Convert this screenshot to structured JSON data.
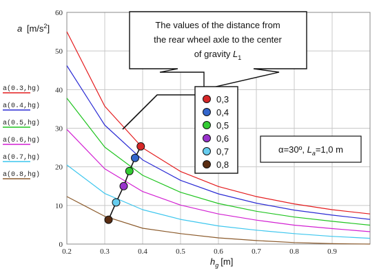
{
  "chart_data": {
    "type": "line",
    "title": "",
    "xlabel_main": "h",
    "xlabel_sub": "g",
    "xlabel_unit": "[m]",
    "ylabel_main": "a",
    "ylabel_unit": "[m/s",
    "ylabel_sup": "2",
    "ylabel_close": "]",
    "xlim": [
      0.2,
      1.0
    ],
    "ylim": [
      0,
      60
    ],
    "xticks": [
      "0.2",
      "0.3",
      "0.4",
      "0.5",
      "0.6",
      "0.7",
      "0.8",
      "0.9"
    ],
    "yticks": [
      "0",
      "10",
      "20",
      "30",
      "40",
      "50",
      "60"
    ],
    "grid": true,
    "legend_position": "left",
    "series": [
      {
        "name": "a(0.3,hg)",
        "color": "#e41a1c",
        "x": [
          0.2,
          0.3,
          0.4,
          0.5,
          0.6,
          0.7,
          0.8,
          0.9,
          1.0
        ],
        "values": [
          55.0,
          35.7,
          24.9,
          18.8,
          14.9,
          12.3,
          10.4,
          8.9,
          7.8
        ]
      },
      {
        "name": "a(0.4,hg)",
        "color": "#2a2ad4",
        "x": [
          0.2,
          0.3,
          0.4,
          0.5,
          0.6,
          0.7,
          0.8,
          0.9,
          1.0
        ],
        "values": [
          46.2,
          30.8,
          21.8,
          16.5,
          13.0,
          10.6,
          8.8,
          7.5,
          6.4
        ]
      },
      {
        "name": "a(0.5,hg)",
        "color": "#1fc41f",
        "x": [
          0.2,
          0.3,
          0.4,
          0.5,
          0.6,
          0.7,
          0.8,
          0.9,
          1.0
        ],
        "values": [
          37.8,
          25.1,
          17.8,
          13.4,
          10.5,
          8.5,
          7.0,
          5.9,
          4.9
        ]
      },
      {
        "name": "a(0.6,hg)",
        "color": "#d21fd2",
        "x": [
          0.2,
          0.3,
          0.4,
          0.5,
          0.6,
          0.7,
          0.8,
          0.9,
          1.0
        ],
        "values": [
          29.7,
          19.5,
          13.6,
          10.1,
          7.8,
          6.2,
          4.9,
          4.0,
          3.2
        ]
      },
      {
        "name": "a(0.7,hg)",
        "color": "#3cc6ee",
        "x": [
          0.2,
          0.3,
          0.4,
          0.5,
          0.6,
          0.7,
          0.8,
          0.9,
          1.0
        ],
        "values": [
          20.5,
          13.1,
          8.9,
          6.4,
          4.7,
          3.6,
          2.7,
          2.0,
          1.5
        ]
      },
      {
        "name": "a(0.8,hg)",
        "color": "#8b5a2b",
        "x": [
          0.2,
          0.3,
          0.4,
          0.5,
          0.6,
          0.7,
          0.8,
          0.9,
          1.0
        ],
        "values": [
          12.3,
          7.2,
          4.1,
          2.7,
          1.6,
          0.9,
          0.4,
          0.1,
          0.0
        ]
      }
    ],
    "markers": [
      {
        "label": "0,3",
        "color": "#d62728",
        "x": 0.395,
        "y": 25.3
      },
      {
        "label": "0,4",
        "color": "#3366cc",
        "x": 0.38,
        "y": 22.3
      },
      {
        "label": "0,5",
        "color": "#33cc33",
        "x": 0.365,
        "y": 18.9
      },
      {
        "label": "0,6",
        "color": "#9933cc",
        "x": 0.35,
        "y": 15.0
      },
      {
        "label": "0,7",
        "color": "#66ccee",
        "x": 0.33,
        "y": 10.8
      },
      {
        "label": "0,8",
        "color": "#5a2d12",
        "x": 0.31,
        "y": 6.3
      }
    ],
    "callout_lines": [
      "The values of the distance from",
      "the rear wheel axle to the center",
      "of gravity "
    ],
    "callout_symbol": "L",
    "callout_symbol_sub": "1",
    "param_alpha": "α=30º, ",
    "param_L": "L",
    "param_L_sub": "a",
    "param_L_value": "=1,0 m"
  }
}
